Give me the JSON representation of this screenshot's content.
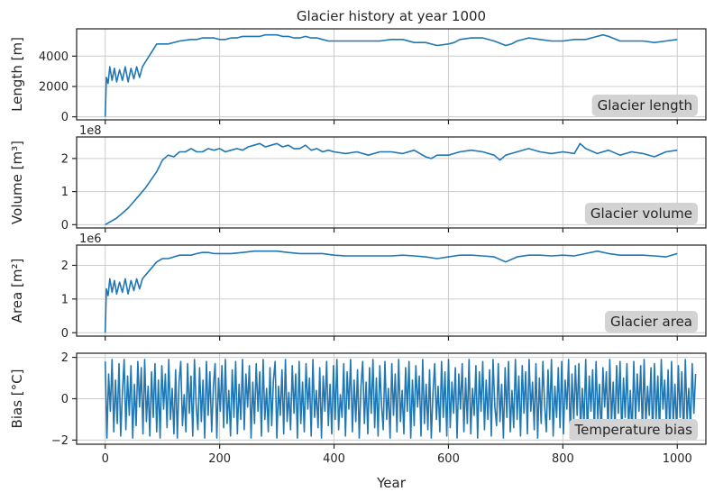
{
  "chart_data": {
    "type": "line",
    "title": "Glacier history at year 1000",
    "xlabel": "Year",
    "xlim": [
      -50,
      1050
    ],
    "xticks": [
      0,
      200,
      400,
      600,
      800,
      1000
    ],
    "grid": true,
    "line_color": "#1f77b4",
    "legend_box_color": "#d3d3d3",
    "legend_placement": "lower-right",
    "panels": [
      {
        "ylabel": "Length [m]",
        "label": "Glacier length",
        "offset_text": "",
        "ylim": [
          -200,
          5800
        ],
        "yticks": [
          0,
          2000,
          4000
        ],
        "ytick_labels": [
          "0",
          "2000",
          "4000"
        ],
        "series": {
          "x": [
            0,
            2,
            5,
            8,
            12,
            16,
            20,
            25,
            30,
            35,
            40,
            45,
            50,
            55,
            60,
            65,
            70,
            80,
            90,
            100,
            110,
            130,
            150,
            160,
            170,
            180,
            190,
            200,
            210,
            220,
            230,
            240,
            250,
            260,
            270,
            280,
            290,
            300,
            310,
            320,
            330,
            340,
            350,
            360,
            370,
            380,
            390,
            400,
            420,
            440,
            460,
            480,
            500,
            520,
            540,
            560,
            580,
            600,
            610,
            620,
            640,
            660,
            680,
            700,
            710,
            720,
            740,
            760,
            780,
            800,
            820,
            840,
            860,
            870,
            880,
            900,
            920,
            940,
            960,
            980,
            1000
          ],
          "y": [
            0,
            2600,
            2200,
            3300,
            2400,
            3200,
            2300,
            3100,
            2400,
            3300,
            2300,
            3200,
            2500,
            3300,
            2600,
            3300,
            3600,
            4200,
            4800,
            4800,
            4800,
            5000,
            5100,
            5100,
            5200,
            5200,
            5200,
            5100,
            5100,
            5200,
            5200,
            5300,
            5300,
            5300,
            5300,
            5400,
            5400,
            5400,
            5300,
            5300,
            5200,
            5200,
            5300,
            5200,
            5200,
            5100,
            5000,
            5000,
            5000,
            5000,
            5000,
            5000,
            5100,
            5100,
            4900,
            4900,
            4700,
            4800,
            4900,
            5100,
            5200,
            5200,
            5000,
            4700,
            4800,
            5000,
            5200,
            5100,
            5000,
            5000,
            5100,
            5100,
            5300,
            5400,
            5300,
            5000,
            5000,
            5000,
            4900,
            5000,
            5100
          ]
        }
      },
      {
        "ylabel": "Volume [m³]",
        "label": "Glacier volume",
        "offset_text": "1e8",
        "ylim": [
          -0.1,
          2.65
        ],
        "yticks": [
          0,
          1,
          2
        ],
        "ytick_labels": [
          "0",
          "1",
          "2"
        ],
        "series": {
          "x": [
            0,
            10,
            20,
            30,
            40,
            50,
            60,
            70,
            80,
            90,
            100,
            110,
            120,
            130,
            140,
            150,
            160,
            170,
            180,
            190,
            200,
            210,
            220,
            230,
            240,
            250,
            260,
            270,
            280,
            290,
            300,
            310,
            320,
            330,
            340,
            350,
            360,
            370,
            380,
            390,
            400,
            420,
            440,
            460,
            480,
            500,
            520,
            540,
            560,
            570,
            580,
            600,
            620,
            640,
            660,
            680,
            690,
            700,
            720,
            740,
            760,
            780,
            800,
            820,
            830,
            840,
            860,
            880,
            900,
            920,
            940,
            960,
            980,
            1000
          ],
          "y": [
            0,
            0.1,
            0.2,
            0.35,
            0.5,
            0.7,
            0.9,
            1.1,
            1.35,
            1.6,
            1.95,
            2.1,
            2.05,
            2.2,
            2.2,
            2.3,
            2.2,
            2.2,
            2.3,
            2.25,
            2.3,
            2.2,
            2.25,
            2.3,
            2.25,
            2.35,
            2.4,
            2.45,
            2.35,
            2.4,
            2.45,
            2.35,
            2.4,
            2.3,
            2.3,
            2.4,
            2.25,
            2.3,
            2.2,
            2.25,
            2.2,
            2.15,
            2.2,
            2.1,
            2.2,
            2.2,
            2.15,
            2.25,
            2.05,
            2.0,
            2.1,
            2.1,
            2.2,
            2.25,
            2.2,
            2.1,
            1.95,
            2.1,
            2.2,
            2.3,
            2.2,
            2.15,
            2.2,
            2.15,
            2.45,
            2.3,
            2.15,
            2.25,
            2.1,
            2.2,
            2.15,
            2.05,
            2.2,
            2.25
          ]
        }
      },
      {
        "ylabel": "Area [m²]",
        "label": "Glacier area",
        "offset_text": "1e6",
        "ylim": [
          -0.1,
          2.6
        ],
        "yticks": [
          0,
          1,
          2
        ],
        "ytick_labels": [
          "0",
          "1",
          "2"
        ],
        "series": {
          "x": [
            0,
            2,
            5,
            8,
            12,
            16,
            20,
            25,
            30,
            35,
            40,
            45,
            50,
            55,
            60,
            65,
            70,
            80,
            90,
            100,
            110,
            130,
            150,
            160,
            170,
            180,
            190,
            200,
            220,
            240,
            260,
            280,
            300,
            320,
            340,
            360,
            380,
            400,
            420,
            440,
            460,
            480,
            500,
            520,
            540,
            560,
            580,
            600,
            620,
            640,
            660,
            680,
            700,
            720,
            740,
            760,
            780,
            800,
            820,
            840,
            860,
            880,
            900,
            920,
            940,
            960,
            980,
            1000
          ],
          "y": [
            0,
            1.3,
            1.1,
            1.6,
            1.2,
            1.55,
            1.15,
            1.5,
            1.2,
            1.6,
            1.15,
            1.55,
            1.25,
            1.6,
            1.3,
            1.6,
            1.7,
            1.9,
            2.1,
            2.2,
            2.2,
            2.3,
            2.3,
            2.35,
            2.38,
            2.38,
            2.35,
            2.35,
            2.35,
            2.38,
            2.42,
            2.42,
            2.42,
            2.38,
            2.35,
            2.35,
            2.35,
            2.3,
            2.28,
            2.28,
            2.28,
            2.28,
            2.28,
            2.3,
            2.28,
            2.25,
            2.2,
            2.25,
            2.3,
            2.3,
            2.28,
            2.25,
            2.1,
            2.25,
            2.3,
            2.3,
            2.28,
            2.3,
            2.28,
            2.35,
            2.42,
            2.35,
            2.3,
            2.3,
            2.3,
            2.28,
            2.25,
            2.35
          ]
        }
      },
      {
        "ylabel": "Bias [°C]",
        "label": "Temperature bias",
        "offset_text": "",
        "ylim": [
          -2.2,
          2.2
        ],
        "yticks": [
          -2,
          0,
          2
        ],
        "ytick_labels": [
          "−2",
          "0",
          "2"
        ],
        "series": {
          "x_start": 0,
          "x_step": 3,
          "y": [
            1.8,
            -1.9,
            1.2,
            -0.6,
            1.9,
            -1.6,
            0.9,
            -1.2,
            1.7,
            -1.8,
            0.3,
            1.9,
            -1.5,
            1.1,
            -0.8,
            1.6,
            -1.9,
            0.7,
            -1.3,
            1.8,
            -0.4,
            1.5,
            -1.7,
            1.9,
            -1.1,
            0.6,
            -1.8,
            1.3,
            -0.9,
            1.7,
            -1.6,
            0.9,
            -1.9,
            1.6,
            -0.5,
            1.2,
            -1.4,
            1.9,
            -1.0,
            0.5,
            -1.7,
            1.4,
            -1.9,
            0.8,
            1.8,
            -1.3,
            0.2,
            -1.6,
            1.7,
            -0.7,
            1.1,
            -1.8,
            1.9,
            -0.3,
            -1.5,
            1.5,
            -1.1,
            0.9,
            -1.9,
            1.8,
            -0.8,
            1.3,
            -1.6,
            0.6,
            1.7,
            -1.9,
            1.0,
            -0.6,
            1.6,
            -1.4,
            1.9,
            -1.2,
            0.4,
            -1.8,
            1.4,
            -0.9,
            1.8,
            -1.7,
            0.7,
            -1.0,
            1.9,
            -1.5,
            1.2,
            -0.4,
            1.6,
            -1.9,
            0.8,
            -1.2,
            1.7,
            -0.6,
            1.3,
            -1.8,
            1.9,
            -1.0,
            0.5,
            -1.6,
            1.5,
            -1.3,
            0.9,
            1.8,
            -1.9,
            0.6,
            -0.8,
            1.4,
            -1.7,
            1.9,
            -1.1,
            0.3,
            -1.5,
            1.6,
            -0.7,
            1.2,
            -1.9,
            1.8,
            -1.2,
            0.8,
            -1.6,
            1.7,
            -0.5,
            1.0,
            -1.8,
            1.9,
            -0.9,
            0.4,
            -1.4,
            1.5,
            -1.9,
            1.1,
            -0.6,
            1.8,
            -1.3,
            0.7,
            -1.7,
            1.6,
            -1.0,
            1.9,
            -1.5,
            0.2,
            -0.9,
            1.7,
            -1.8,
            1.3,
            -0.5,
            1.9,
            -1.6,
            0.9,
            -1.1,
            1.4,
            -1.9,
            0.6,
            1.8,
            -1.2,
            0.8,
            -1.7,
            1.5,
            -0.7,
            1.9,
            -1.4,
            1.0,
            -1.8,
            1.6,
            -0.3,
            -1.5,
            1.8,
            -1.0,
            0.5,
            -1.9,
            1.7,
            -0.8,
            1.2,
            -1.6,
            1.9,
            -1.1,
            0.4,
            -1.7,
            1.5,
            -0.6,
            1.8,
            -1.9,
            0.9,
            -1.3,
            1.6,
            -0.4,
            1.1,
            -1.8,
            1.9,
            -1.2,
            0.7,
            -1.5,
            1.4,
            -1.9,
            0.3,
            1.7,
            -1.0,
            0.6,
            -1.6,
            1.8,
            -0.9,
            1.3,
            -1.8,
            1.9,
            -1.4,
            0.8,
            -0.7,
            1.5,
            -1.9,
            1.2,
            -0.5,
            1.7,
            -1.6,
            1.0,
            -1.2,
            1.9,
            -1.7,
            0.5,
            -0.8,
            1.6,
            -1.9,
            1.3,
            -0.6,
            1.8,
            -1.5,
            0.9,
            -1.0,
            1.4,
            -1.8,
            1.9,
            -0.4,
            -1.3,
            1.7,
            -1.1,
            0.7,
            -1.9,
            1.5,
            -0.9,
            1.8,
            -1.6,
            0.4,
            -1.4,
            1.9,
            -1.0,
            1.1,
            -1.8,
            1.6,
            -0.7,
            1.3,
            -1.7,
            1.9,
            -0.6,
            0.8,
            -1.5,
            1.7,
            -1.9,
            1.0,
            -1.2,
            1.8,
            -0.3,
            -1.6,
            1.4,
            -1.0,
            1.9,
            -1.8,
            0.6,
            -0.9,
            1.5,
            -1.4,
            1.8,
            -1.7,
            0.9,
            -0.5,
            1.9,
            -1.9,
            1.2,
            -1.1,
            1.6,
            -0.8,
            1.7,
            -1.5,
            0.5,
            -1.3,
            1.9,
            -1.8,
            1.1,
            -0.6,
            1.4,
            -1.6,
            1.8,
            -1.0,
            0.7,
            -1.9,
            1.5,
            -0.4,
            1.3,
            -1.7,
            1.9,
            -1.2,
            0.8,
            -1.5,
            1.6,
            -0.7,
            1.8,
            -1.8,
            1.0,
            -0.9,
            1.7,
            -1.4,
            0.4,
            -1.9,
            1.8,
            -1.1,
            1.2,
            -0.6,
            1.6,
            -1.6,
            1.9,
            -1.3,
            0.6,
            -0.8,
            1.5,
            -1.9,
            1.7,
            -1.0,
            1.1,
            -1.7,
            1.9,
            -0.5,
            0.9,
            -1.4,
            1.4,
            -1.8,
            1.8,
            -1.2,
            0.7,
            -1.6,
            1.6,
            -0.9,
            1.3,
            -1.9,
            1.9,
            -1.0,
            0.5,
            -1.5,
            1.7,
            -0.7,
            1.2
          ]
        }
      }
    ]
  }
}
